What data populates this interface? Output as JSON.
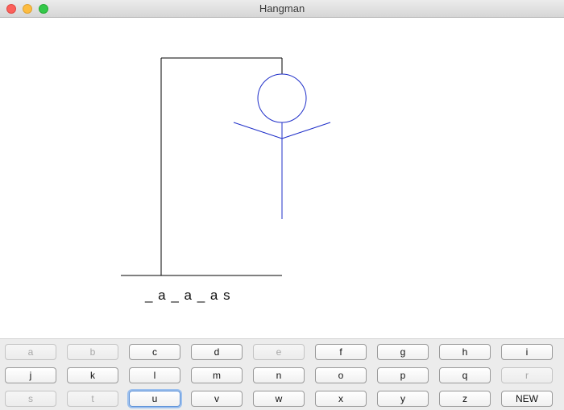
{
  "window": {
    "title": "Hangman"
  },
  "game": {
    "word_display": "_ a _ a _ a s",
    "gallows_color": "#000000",
    "figure_color": "#1f2fc9"
  },
  "keyboard": {
    "rows": [
      [
        {
          "label": "a",
          "enabled": false
        },
        {
          "label": "b",
          "enabled": false
        },
        {
          "label": "c",
          "enabled": true
        },
        {
          "label": "d",
          "enabled": true
        },
        {
          "label": "e",
          "enabled": false
        },
        {
          "label": "f",
          "enabled": true
        },
        {
          "label": "g",
          "enabled": true
        },
        {
          "label": "h",
          "enabled": true
        },
        {
          "label": "i",
          "enabled": true
        }
      ],
      [
        {
          "label": "j",
          "enabled": true
        },
        {
          "label": "k",
          "enabled": true
        },
        {
          "label": "l",
          "enabled": true
        },
        {
          "label": "m",
          "enabled": true
        },
        {
          "label": "n",
          "enabled": true
        },
        {
          "label": "o",
          "enabled": true
        },
        {
          "label": "p",
          "enabled": true
        },
        {
          "label": "q",
          "enabled": true
        },
        {
          "label": "r",
          "enabled": false
        }
      ],
      [
        {
          "label": "s",
          "enabled": false
        },
        {
          "label": "t",
          "enabled": false
        },
        {
          "label": "u",
          "enabled": true,
          "focused": true
        },
        {
          "label": "v",
          "enabled": true
        },
        {
          "label": "w",
          "enabled": true
        },
        {
          "label": "x",
          "enabled": true
        },
        {
          "label": "y",
          "enabled": true
        },
        {
          "label": "z",
          "enabled": true
        },
        {
          "label": "NEW",
          "enabled": true
        }
      ]
    ]
  }
}
